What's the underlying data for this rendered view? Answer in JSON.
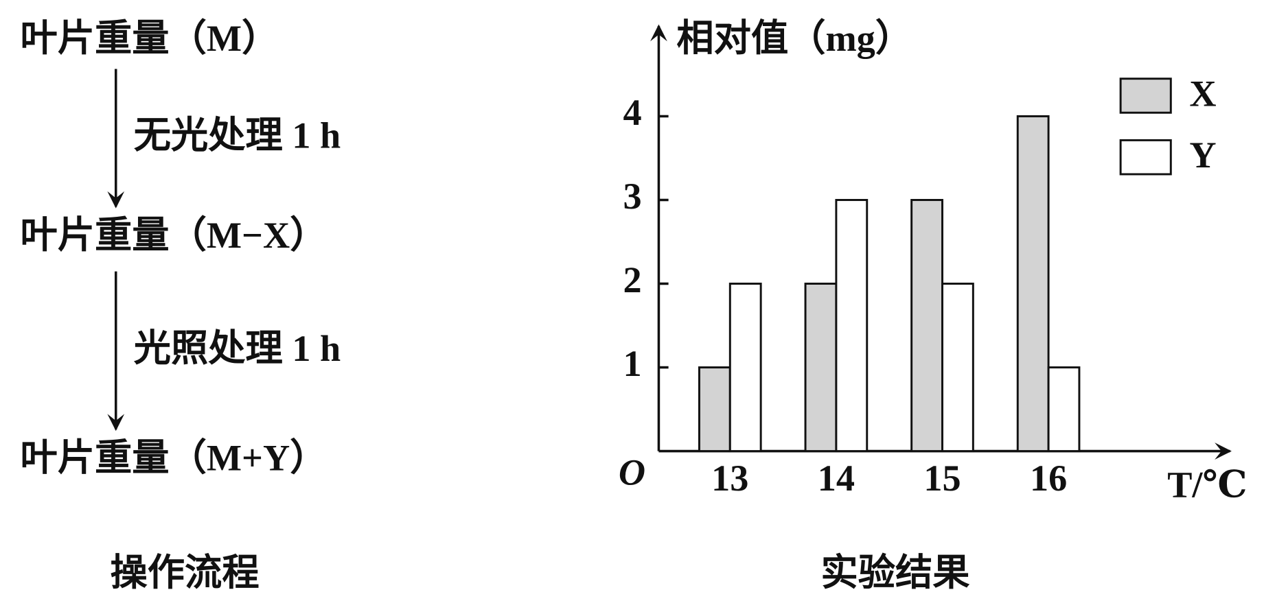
{
  "flow": {
    "steps": [
      "叶片重量（M）",
      "叶片重量（M−X）",
      "叶片重量（M+Y）"
    ],
    "actions": [
      "无光处理 1 h",
      "光照处理 1 h"
    ],
    "caption": "操作流程"
  },
  "chart_data": {
    "type": "bar",
    "title": "相对值（mg）",
    "x_label": "T/℃",
    "origin_label": "O",
    "caption": "实验结果",
    "categories": [
      "13",
      "14",
      "15",
      "16"
    ],
    "series": [
      {
        "name": "X",
        "color": "#d3d3d3",
        "values": [
          1,
          2,
          3,
          4
        ]
      },
      {
        "name": "Y",
        "color": "#ffffff",
        "values": [
          2,
          3,
          2,
          1
        ]
      }
    ],
    "ylim": [
      0,
      5
    ],
    "yticks": [
      1,
      2,
      3,
      4
    ],
    "legend": "upper right"
  }
}
